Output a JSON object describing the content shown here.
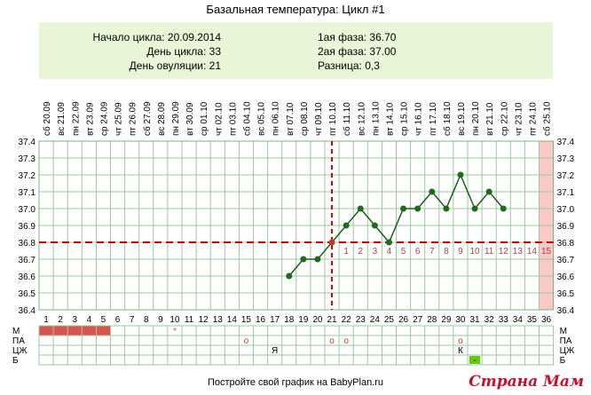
{
  "title": "Базальная температура: Цикл #1",
  "info": {
    "left": [
      "Начало цикла: 20.09.2014",
      "День цикла: 33",
      "День овуляции: 21"
    ],
    "right": [
      "1ая фаза: 36.70",
      "2ая фаза: 37.00",
      "Разница: 0,3"
    ]
  },
  "footer": "Постройте свой график на BabyPlan.ru",
  "watermark": "Страна Мам",
  "chart_data": {
    "type": "line",
    "dates": [
      "20.09",
      "21.09",
      "22.09",
      "23.09",
      "24.09",
      "25.09",
      "26.09",
      "27.09",
      "28.09",
      "29.09",
      "30.09",
      "01.10",
      "02.10",
      "03.10",
      "04.10",
      "05.10",
      "06.10",
      "07.10",
      "08.10",
      "09.10",
      "10.10",
      "11.10",
      "12.10",
      "13.10",
      "14.10",
      "15.10",
      "16.10",
      "17.10",
      "18.10",
      "19.10",
      "20.10",
      "21.10",
      "22.10",
      "23.10",
      "24.10",
      "25.10"
    ],
    "weekdays": [
      "сб",
      "вс",
      "пн",
      "вт",
      "ср",
      "чт",
      "пт",
      "сб",
      "вс",
      "пн",
      "вт",
      "ср",
      "чт",
      "пт",
      "сб",
      "вс",
      "пн",
      "вт",
      "ср",
      "чт",
      "пт",
      "сб",
      "вс",
      "пн",
      "вт",
      "ср",
      "чт",
      "пт",
      "сб",
      "вс",
      "пн",
      "вт",
      "ср",
      "чт",
      "пт",
      "сб"
    ],
    "cycle_days": [
      1,
      2,
      3,
      4,
      5,
      6,
      7,
      8,
      9,
      10,
      11,
      12,
      13,
      14,
      15,
      16,
      17,
      18,
      19,
      20,
      21,
      22,
      23,
      24,
      25,
      26,
      27,
      28,
      29,
      30,
      31,
      32,
      33,
      34,
      35,
      36
    ],
    "y_ticks": [
      "37.4",
      "37.3",
      "37.2",
      "37.1",
      "37.0",
      "36.9",
      "36.8",
      "36.7",
      "36.6",
      "36.5",
      "36.4"
    ],
    "ylim": [
      36.4,
      37.4
    ],
    "temperatures": [
      {
        "day": 18,
        "value": 36.6
      },
      {
        "day": 19,
        "value": 36.7
      },
      {
        "day": 20,
        "value": 36.7
      },
      {
        "day": 21,
        "value": 36.8
      },
      {
        "day": 22,
        "value": 36.9
      },
      {
        "day": 23,
        "value": 37.0
      },
      {
        "day": 24,
        "value": 36.9
      },
      {
        "day": 25,
        "value": 36.8
      },
      {
        "day": 26,
        "value": 37.0
      },
      {
        "day": 27,
        "value": 37.0
      },
      {
        "day": 28,
        "value": 37.1
      },
      {
        "day": 29,
        "value": 37.0
      },
      {
        "day": 30,
        "value": 37.2
      },
      {
        "day": 31,
        "value": 37.0
      },
      {
        "day": 32,
        "value": 37.1
      },
      {
        "day": 33,
        "value": 37.0
      }
    ],
    "ovulation_day": 21,
    "coverline": 36.8,
    "luteal_numbers": [
      "1",
      "2",
      "3",
      "4",
      "5",
      "6",
      "7",
      "8",
      "9",
      "10",
      "11",
      "12",
      "13",
      "14",
      "15"
    ],
    "highlight_day": 36,
    "marker_rows": [
      "М",
      "ПА",
      "ЦЖ",
      "Б"
    ],
    "menstruation_days": [
      1,
      2,
      3,
      4,
      5
    ],
    "m_marks": [
      {
        "day": 10,
        "mark": "*"
      }
    ],
    "pa_marks": [
      {
        "day": 15,
        "mark": "o"
      },
      {
        "day": 21,
        "mark": "o"
      },
      {
        "day": 22,
        "mark": "o"
      },
      {
        "day": 30,
        "mark": "o"
      }
    ],
    "czh_marks": [
      {
        "day": 17,
        "mark": "Я"
      },
      {
        "day": 30,
        "mark": "К"
      }
    ],
    "b_marks": [
      {
        "day": 31,
        "mark": "-"
      }
    ],
    "colors": {
      "line": "#1e5a1e",
      "point": "#1e6b1e",
      "ovulation_point": "#c0392b",
      "coverline": "#d00000",
      "grid": "#9cc99c",
      "menstruation": "#d9534f",
      "highlight": "#f9c8c8",
      "luteal_numbers": "#b04040",
      "b_mark": "#66cc00"
    }
  }
}
